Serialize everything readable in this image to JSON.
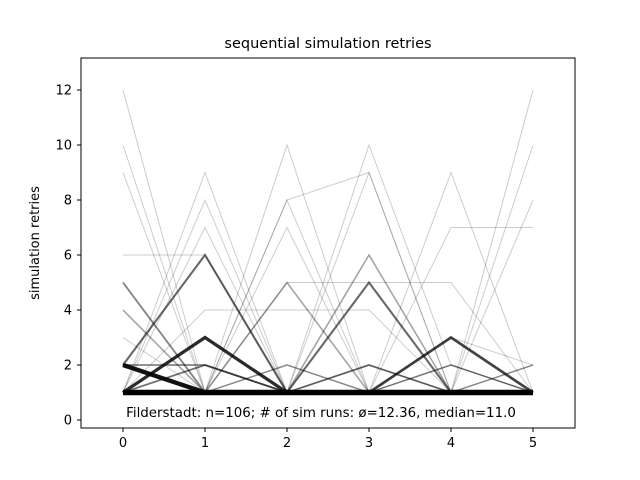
{
  "figure": {
    "background": "#ffffff"
  },
  "chart_data": {
    "type": "line",
    "title": "sequential simulation retries",
    "xlabel": "",
    "ylabel": "simulation retries",
    "annotation": "Filderstadt: n=106; # of sim runs: ø=12.36, median=11.0",
    "place": "Filderstadt",
    "n_runs": 106,
    "sim_runs_mean": 12.36,
    "sim_runs_median": 11.0,
    "x": [
      0,
      1,
      2,
      3,
      4,
      5
    ],
    "xtick_labels": [
      "0",
      "1",
      "2",
      "3",
      "4",
      "5"
    ],
    "yticks": [
      0,
      2,
      4,
      6,
      8,
      10,
      12
    ],
    "ytick_labels": [
      "0",
      "2",
      "4",
      "6",
      "8",
      "10",
      "12"
    ],
    "xlim": [
      -0.5,
      5.5
    ],
    "ylim": [
      -0.3,
      13.2
    ],
    "grid": false,
    "legend": null,
    "line_color": "#000000",
    "runs": [
      {
        "y": [
          1,
          1,
          1,
          1,
          1,
          1
        ],
        "count": 30
      },
      {
        "y": [
          2,
          1,
          1,
          1,
          1,
          1
        ],
        "count": 12
      },
      {
        "y": [
          1,
          3,
          1,
          1,
          1,
          1
        ],
        "count": 8
      },
      {
        "y": [
          1,
          1,
          1,
          1,
          3,
          1
        ],
        "count": 6
      },
      {
        "y": [
          1,
          1,
          1,
          5,
          1,
          1
        ],
        "count": 4
      },
      {
        "y": [
          2,
          6,
          1,
          1,
          1,
          1
        ],
        "count": 4
      },
      {
        "y": [
          2,
          2,
          1,
          1,
          1,
          1
        ],
        "count": 3
      },
      {
        "y": [
          1,
          1,
          1,
          2,
          1,
          1
        ],
        "count": 3
      },
      {
        "y": [
          1,
          2,
          1,
          1,
          1,
          1
        ],
        "count": 3
      },
      {
        "y": [
          5,
          1,
          1,
          1,
          1,
          1
        ],
        "count": 3
      },
      {
        "y": [
          1,
          1,
          2,
          1,
          2,
          1
        ],
        "count": 2
      },
      {
        "y": [
          1,
          1,
          5,
          1,
          1,
          1
        ],
        "count": 2
      },
      {
        "y": [
          1,
          1,
          1,
          6,
          1,
          1
        ],
        "count": 2
      },
      {
        "y": [
          1,
          1,
          1,
          1,
          1,
          2
        ],
        "count": 2
      },
      {
        "y": [
          4,
          1,
          1,
          1,
          1,
          1
        ],
        "count": 2
      },
      {
        "y": [
          12,
          1,
          1,
          1,
          1,
          1
        ],
        "count": 1
      },
      {
        "y": [
          10,
          1,
          1,
          1,
          1,
          1
        ],
        "count": 1
      },
      {
        "y": [
          9,
          1,
          2,
          1,
          1,
          1
        ],
        "count": 1
      },
      {
        "y": [
          1,
          9,
          1,
          1,
          2,
          1
        ],
        "count": 1
      },
      {
        "y": [
          1,
          8,
          1,
          2,
          1,
          1
        ],
        "count": 1
      },
      {
        "y": [
          1,
          7,
          1,
          1,
          1,
          2
        ],
        "count": 1
      },
      {
        "y": [
          6,
          6,
          1,
          1,
          1,
          1
        ],
        "count": 1
      },
      {
        "y": [
          1,
          1,
          10,
          1,
          2,
          1
        ],
        "count": 1
      },
      {
        "y": [
          2,
          1,
          8,
          1,
          1,
          1
        ],
        "count": 1
      },
      {
        "y": [
          1,
          1,
          1,
          10,
          2,
          1
        ],
        "count": 1
      },
      {
        "y": [
          1,
          1,
          8,
          9,
          1,
          1
        ],
        "count": 1
      },
      {
        "y": [
          1,
          2,
          1,
          9,
          1,
          1
        ],
        "count": 1
      },
      {
        "y": [
          1,
          1,
          1,
          1,
          9,
          1
        ],
        "count": 1
      },
      {
        "y": [
          1,
          1,
          1,
          1,
          1,
          12
        ],
        "count": 1
      },
      {
        "y": [
          1,
          1,
          1,
          2,
          1,
          10
        ],
        "count": 1
      },
      {
        "y": [
          1,
          1,
          1,
          1,
          1,
          8
        ],
        "count": 1
      },
      {
        "y": [
          1,
          1,
          1,
          1,
          7,
          7
        ],
        "count": 1
      },
      {
        "y": [
          1,
          4,
          4,
          4,
          1,
          1
        ],
        "count": 1
      },
      {
        "y": [
          1,
          1,
          5,
          5,
          5,
          1
        ],
        "count": 1
      },
      {
        "y": [
          3,
          1,
          7,
          1,
          3,
          2
        ],
        "count": 1
      }
    ]
  }
}
